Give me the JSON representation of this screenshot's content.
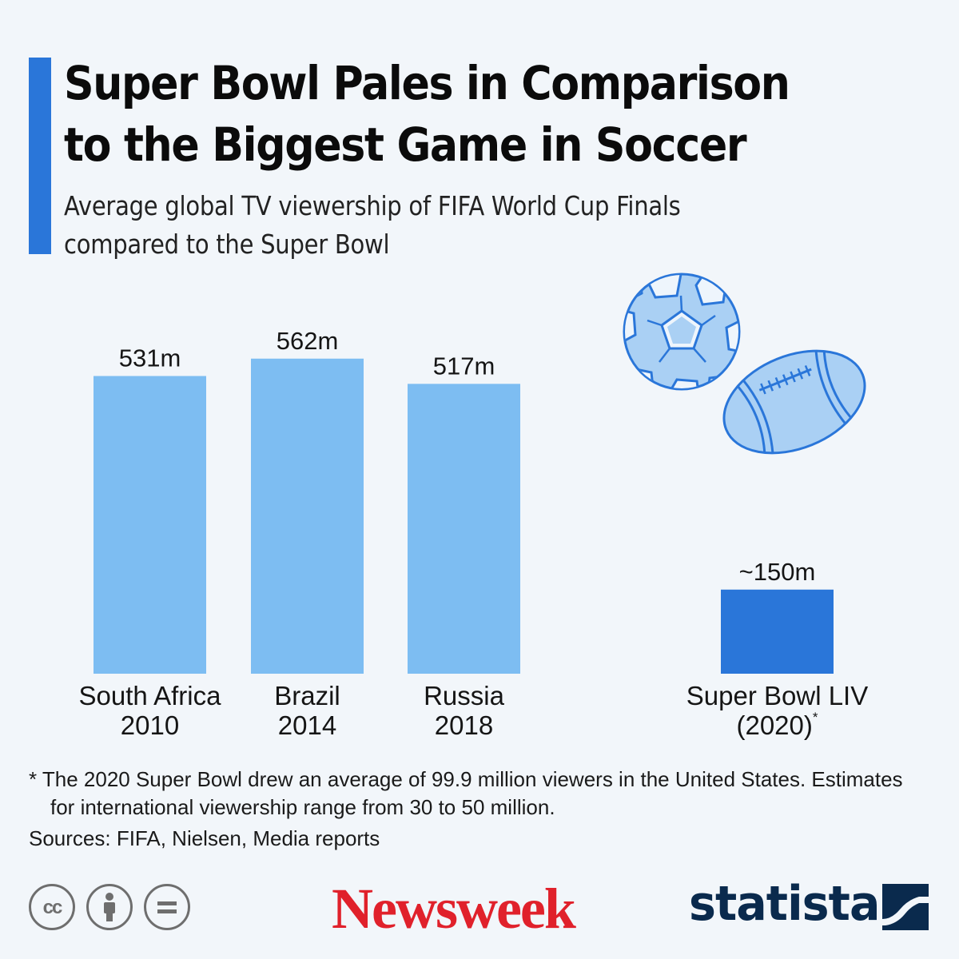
{
  "header": {
    "title_line1": "Super Bowl Pales in Comparison",
    "title_line2": "to the Biggest Game in Soccer",
    "subtitle_line1": "Average global TV viewership of FIFA World Cup Finals",
    "subtitle_line2": "compared to the Super Bowl"
  },
  "chart_data": {
    "type": "bar",
    "title": "Super Bowl Pales in Comparison to the Biggest Game in Soccer",
    "subtitle": "Average global TV viewership of FIFA World Cup Finals compared to the Super Bowl",
    "unit": "million viewers",
    "ylim": [
      0,
      600
    ],
    "grid": false,
    "bars": [
      {
        "line1": "South Africa",
        "line2": "2010",
        "value": 531,
        "label": "531m",
        "color": "#7dbdf2"
      },
      {
        "line1": "Brazil",
        "line2": "2014",
        "value": 562,
        "label": "562m",
        "color": "#7dbdf2"
      },
      {
        "line1": "Russia",
        "line2": "2018",
        "value": 517,
        "label": "517m",
        "color": "#7dbdf2"
      },
      {
        "line1": "Super Bowl LIV",
        "line2": "(2020)",
        "marker": "*",
        "value": 150,
        "label": "~150m",
        "color": "#2a76d9"
      }
    ]
  },
  "footnote": "* The 2020 Super Bowl drew an average of 99.9 million viewers in the United States. Estimates for international viewership range from 30 to 50 million.",
  "sources": "Sources: FIFA, Nielsen, Media reports",
  "license": {
    "cc_text": "cc",
    "icons": [
      "creative-commons-icon",
      "attribution-icon",
      "no-derivatives-icon"
    ]
  },
  "brands": {
    "newsweek": "Newsweek",
    "statista": "statista"
  },
  "colors": {
    "accent": "#2a76d9",
    "world_cup_bars": "#7dbdf2",
    "super_bowl_bar": "#2a76d9",
    "newsweek_red": "#e0212b",
    "statista_navy": "#0a2a4d"
  },
  "illustrations": [
    "soccer-ball-icon",
    "american-football-icon"
  ]
}
